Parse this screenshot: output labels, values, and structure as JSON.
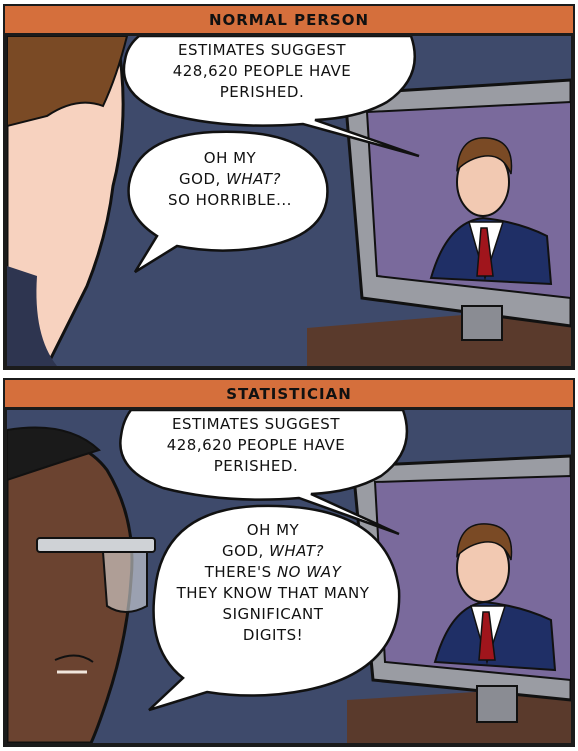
{
  "panels": [
    {
      "header": "NORMAL PERSON",
      "news_bubble": [
        "ESTIMATES SUGGEST",
        "428,620 PEOPLE HAVE",
        "PERISHED."
      ],
      "reply_bubble": {
        "line1": "OH MY",
        "line2_a": "GOD, ",
        "line2_em": "WHAT?",
        "line3": "SO HORRIBLE..."
      }
    },
    {
      "header": "STATISTICIAN",
      "news_bubble": [
        "ESTIMATES SUGGEST",
        "428,620 PEOPLE HAVE",
        "PERISHED."
      ],
      "reply_bubble": {
        "line1": "OH MY",
        "line2_a": "GOD, ",
        "line2_em": "WHAT?",
        "line3_a": "THERE'S ",
        "line3_em": "NO WAY",
        "line4": "THEY KNOW THAT MANY",
        "line5": "SIGNIFICANT",
        "line6": "DIGITS!"
      }
    }
  ],
  "colors": {
    "header": "#d56f3c",
    "wall": "#3e4a6b",
    "tv_screen": "#7a6a9c",
    "skin_light": "#f7d2bf",
    "skin_dark": "#6b4330",
    "anchor_suit": "#1f2f66",
    "anchor_tie": "#a0151c"
  }
}
